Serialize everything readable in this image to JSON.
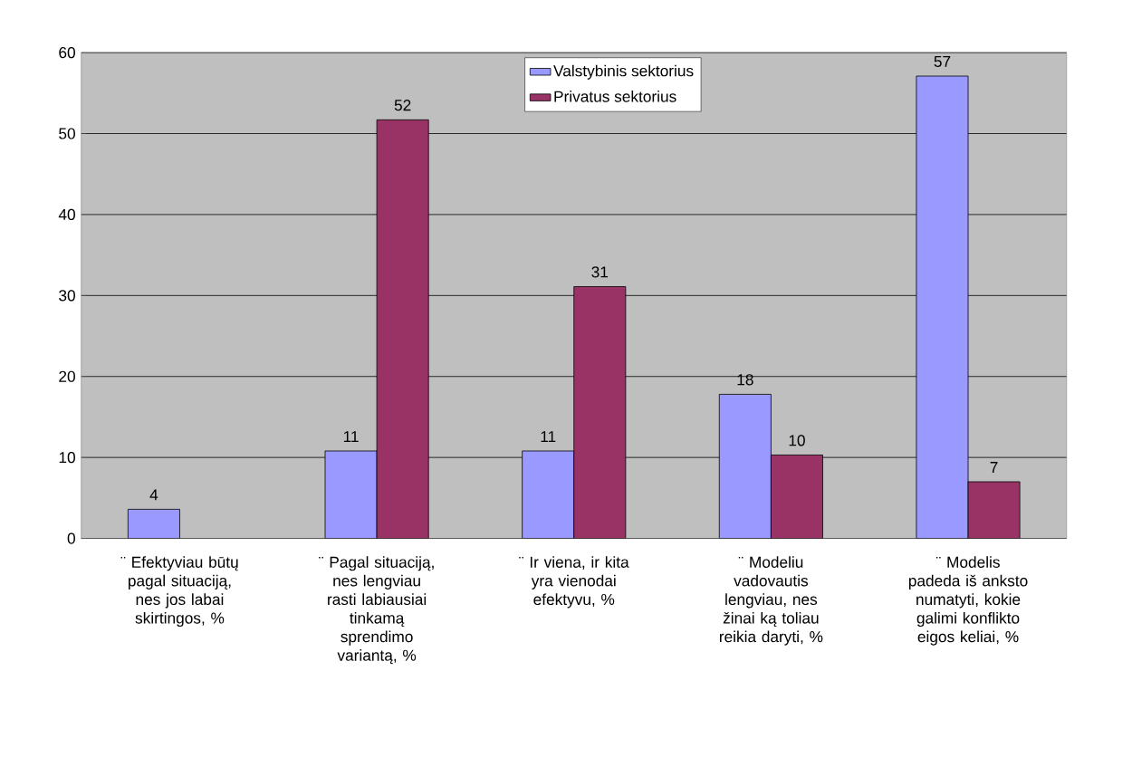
{
  "chart_data": {
    "type": "bar",
    "categories": [
      "¨ Efektyviau būtų pagal situaciją, nes jos labai skirtingos, %",
      "¨ Pagal situaciją, nes lengviau rasti labiausiai tinkamą sprendimo variantą, %",
      "¨ Ir viena, ir kita yra vienodai efektyvu, %",
      "¨ Modeliu vadovautis lengviau, nes žinai ką toliau reikia daryti, %",
      "¨ Modelis padeda iš anksto numatyti, kokie galimi konflikto eigos keliai, %"
    ],
    "series": [
      {
        "name": "Valstybinis sektorius",
        "color": "#9999ff",
        "values": [
          3.6,
          10.8,
          10.8,
          17.8,
          57.1
        ],
        "value_labels": [
          "4",
          "11",
          "11",
          "18",
          "57"
        ]
      },
      {
        "name": "Privatus sektorius",
        "color": "#993366",
        "values": [
          null,
          51.7,
          31.1,
          10.3,
          7.0
        ],
        "value_labels": [
          null,
          "52",
          "31",
          "10",
          "7"
        ]
      }
    ],
    "ylim": [
      0,
      60
    ],
    "yticks": [
      0,
      10,
      20,
      30,
      40,
      50,
      60
    ],
    "grid": "y",
    "legend": "top"
  }
}
